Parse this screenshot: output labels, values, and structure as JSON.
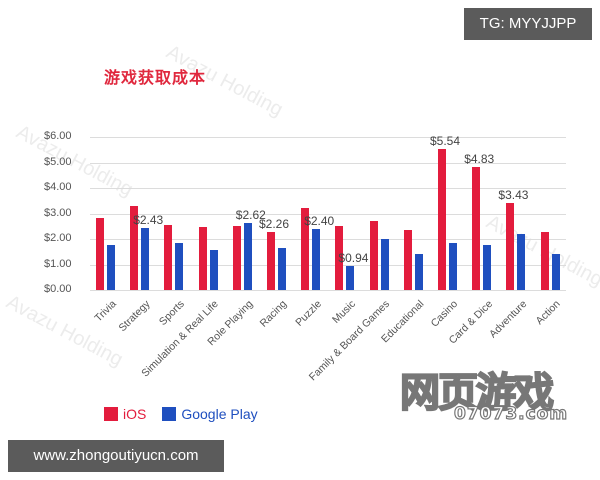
{
  "badges": {
    "top_right": "TG: MYYJJPP",
    "bottom_left": "www.zhongoutiyucn.com"
  },
  "watermark": {
    "text": "Avazu Holding",
    "logo_main": "网页游戏",
    "logo_sub": "07073.com"
  },
  "chart_data": {
    "type": "bar",
    "title": "游戏获取成本",
    "xlabel": "",
    "ylabel": "",
    "ylim": [
      0,
      6
    ],
    "yticks": [
      "$0.00",
      "$1.00",
      "$2.00",
      "$3.00",
      "$4.00",
      "$5.00",
      "$6.00"
    ],
    "grid": true,
    "legend_position": "bottom-left",
    "categories": [
      "Trivia",
      "Strategy",
      "Sports",
      "Simulation & Real Life",
      "Role Playing",
      "Racing",
      "Puzzle",
      "Music",
      "Family & Board Games",
      "Educational",
      "Casino",
      "Card & Dice",
      "Adventure",
      "Action"
    ],
    "series": [
      {
        "name": "iOS",
        "color": "#e31c3d",
        "values": [
          2.82,
          3.29,
          2.55,
          2.47,
          2.52,
          2.26,
          3.22,
          2.5,
          2.7,
          2.35,
          5.54,
          4.83,
          3.43,
          2.27
        ]
      },
      {
        "name": "Google Play",
        "color": "#1f4fbf",
        "values": [
          1.76,
          2.43,
          1.84,
          1.57,
          2.62,
          1.65,
          2.4,
          0.94,
          2.0,
          1.41,
          1.84,
          1.76,
          2.2,
          1.41
        ]
      }
    ],
    "annotations": [
      {
        "category": "Strategy",
        "series": "Google Play",
        "text": "$2.43"
      },
      {
        "category": "Role Playing",
        "series": "Google Play",
        "text": "$2.62"
      },
      {
        "category": "Racing",
        "series": "iOS",
        "text": "$2.26"
      },
      {
        "category": "Puzzle",
        "series": "Google Play",
        "text": "$2.40"
      },
      {
        "category": "Music",
        "series": "Google Play",
        "text": "$0.94"
      },
      {
        "category": "Casino",
        "series": "iOS",
        "text": "$5.54"
      },
      {
        "category": "Card & Dice",
        "series": "iOS",
        "text": "$4.83"
      },
      {
        "category": "Adventure",
        "series": "iOS",
        "text": "$3.43"
      }
    ]
  }
}
